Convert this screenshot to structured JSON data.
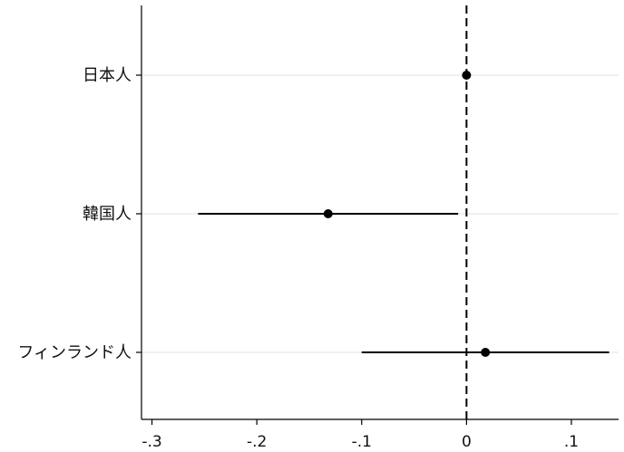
{
  "chart_data": {
    "type": "scatter",
    "orientation": "horizontal",
    "title": "",
    "xlabel": "",
    "ylabel": "",
    "xlim": [
      -0.31,
      0.145
    ],
    "x_ticks": [
      -0.3,
      -0.2,
      -0.1,
      0,
      0.1
    ],
    "x_tick_labels": [
      "-.3",
      "-.2",
      "-.1",
      "0",
      ".1"
    ],
    "reference_line": {
      "x": 0,
      "style": "dashed"
    },
    "grid": "horizontal-at-categories",
    "categories": [
      "日本人",
      "韓国人",
      "フィンランド人"
    ],
    "points": [
      {
        "label": "日本人",
        "estimate": 0.0,
        "ci_low": null,
        "ci_high": null
      },
      {
        "label": "韓国人",
        "estimate": -0.132,
        "ci_low": -0.256,
        "ci_high": -0.008
      },
      {
        "label": "フィンランド人",
        "estimate": 0.018,
        "ci_low": -0.1,
        "ci_high": 0.136
      }
    ],
    "colors": {
      "marker": "#000000",
      "ci": "#000000",
      "grid": "#e6e6e6",
      "axis": "#000000"
    }
  }
}
